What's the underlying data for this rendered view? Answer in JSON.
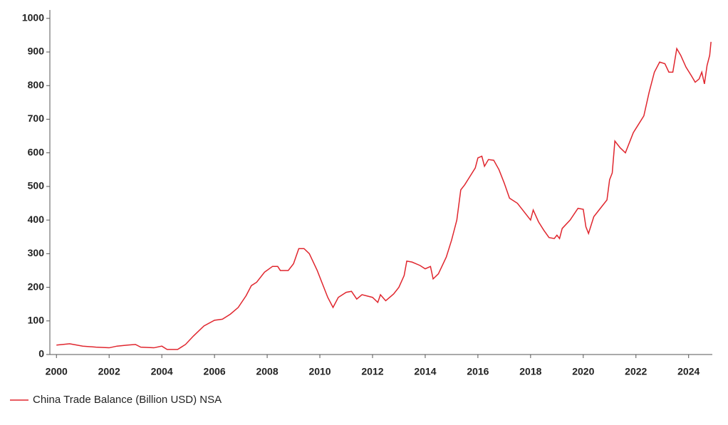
{
  "chart_data": {
    "type": "line",
    "x": [
      2000.0,
      2000.5,
      2001,
      2001.5,
      2002,
      2002.3,
      2002.7,
      2003,
      2003.2,
      2003.7,
      2004,
      2004.2,
      2004.6,
      2004.9,
      2005.2,
      2005.6,
      2006,
      2006.3,
      2006.6,
      2006.9,
      2007.2,
      2007.4,
      2007.6,
      2007.9,
      2008.2,
      2008.4,
      2008.5,
      2008.8,
      2009.0,
      2009.2,
      2009.4,
      2009.6,
      2009.9,
      2010.1,
      2010.3,
      2010.5,
      2010.7,
      2011.0,
      2011.2,
      2011.4,
      2011.6,
      2012,
      2012.2,
      2012.3,
      2012.5,
      2012.8,
      2013.0,
      2013.2,
      2013.3,
      2013.5,
      2013.8,
      2014.0,
      2014.2,
      2014.3,
      2014.5,
      2014.8,
      2015.0,
      2015.2,
      2015.35,
      2015.5,
      2015.7,
      2015.9,
      2016.0,
      2016.15,
      2016.25,
      2016.4,
      2016.6,
      2016.8,
      2017.0,
      2017.2,
      2017.5,
      2017.8,
      2018.0,
      2018.1,
      2018.3,
      2018.5,
      2018.7,
      2018.9,
      2019.0,
      2019.1,
      2019.2,
      2019.5,
      2019.8,
      2020.0,
      2020.1,
      2020.2,
      2020.4,
      2020.7,
      2020.9,
      2021.0,
      2021.1,
      2021.2,
      2021.4,
      2021.6,
      2021.9,
      2022.1,
      2022.3,
      2022.5,
      2022.7,
      2022.9,
      2023.1,
      2023.25,
      2023.4,
      2023.55,
      2023.7,
      2023.9,
      2024.1,
      2024.25,
      2024.4,
      2024.5,
      2024.6,
      2024.7,
      2024.8,
      2024.85
    ],
    "series": [
      {
        "name": "China Trade Balance (Billion USD) NSA",
        "color": "#e0262e",
        "values": [
          28,
          32,
          25,
          22,
          20,
          25,
          28,
          30,
          22,
          20,
          25,
          15,
          15,
          30,
          55,
          85,
          102,
          105,
          120,
          140,
          175,
          205,
          215,
          245,
          262,
          262,
          250,
          250,
          270,
          315,
          315,
          300,
          250,
          210,
          170,
          140,
          170,
          185,
          188,
          165,
          178,
          170,
          155,
          178,
          160,
          180,
          200,
          235,
          278,
          275,
          265,
          255,
          262,
          225,
          240,
          290,
          340,
          400,
          490,
          505,
          530,
          555,
          585,
          590,
          560,
          580,
          578,
          550,
          510,
          465,
          450,
          420,
          400,
          430,
          395,
          370,
          348,
          345,
          355,
          345,
          375,
          400,
          435,
          432,
          380,
          360,
          410,
          440,
          460,
          520,
          540,
          635,
          615,
          600,
          660,
          685,
          710,
          780,
          840,
          870,
          865,
          840,
          840,
          910,
          890,
          855,
          830,
          810,
          820,
          840,
          805,
          860,
          890,
          930
        ]
      }
    ],
    "xlim": [
      1999.75,
      2024.9
    ],
    "xticks": [
      2000,
      2002,
      2004,
      2006,
      2008,
      2010,
      2012,
      2014,
      2016,
      2018,
      2020,
      2022,
      2024
    ],
    "ylim": [
      0,
      1025
    ],
    "yticks": [
      0,
      100,
      200,
      300,
      400,
      500,
      600,
      700,
      800,
      900,
      1000
    ]
  }
}
